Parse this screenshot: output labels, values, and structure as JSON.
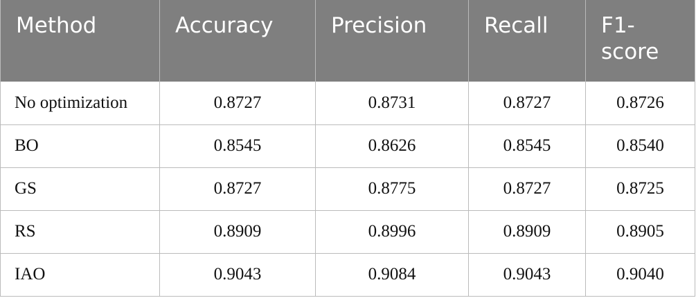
{
  "table": {
    "header": [
      "Method",
      "Accuracy",
      "Precision",
      "Recall",
      "F1-score"
    ],
    "rows": [
      [
        "No optimization",
        "0.8727",
        "0.8731",
        "0.8727",
        "0.8726"
      ],
      [
        "BO",
        "0.8545",
        "0.8626",
        "0.8545",
        "0.8540"
      ],
      [
        "GS",
        "0.8727",
        "0.8775",
        "0.8727",
        "0.8725"
      ],
      [
        "RS",
        "0.8909",
        "0.8996",
        "0.8909",
        "0.8905"
      ],
      [
        "IAO",
        "0.9043",
        "0.9084",
        "0.9043",
        "0.9040"
      ]
    ]
  }
}
